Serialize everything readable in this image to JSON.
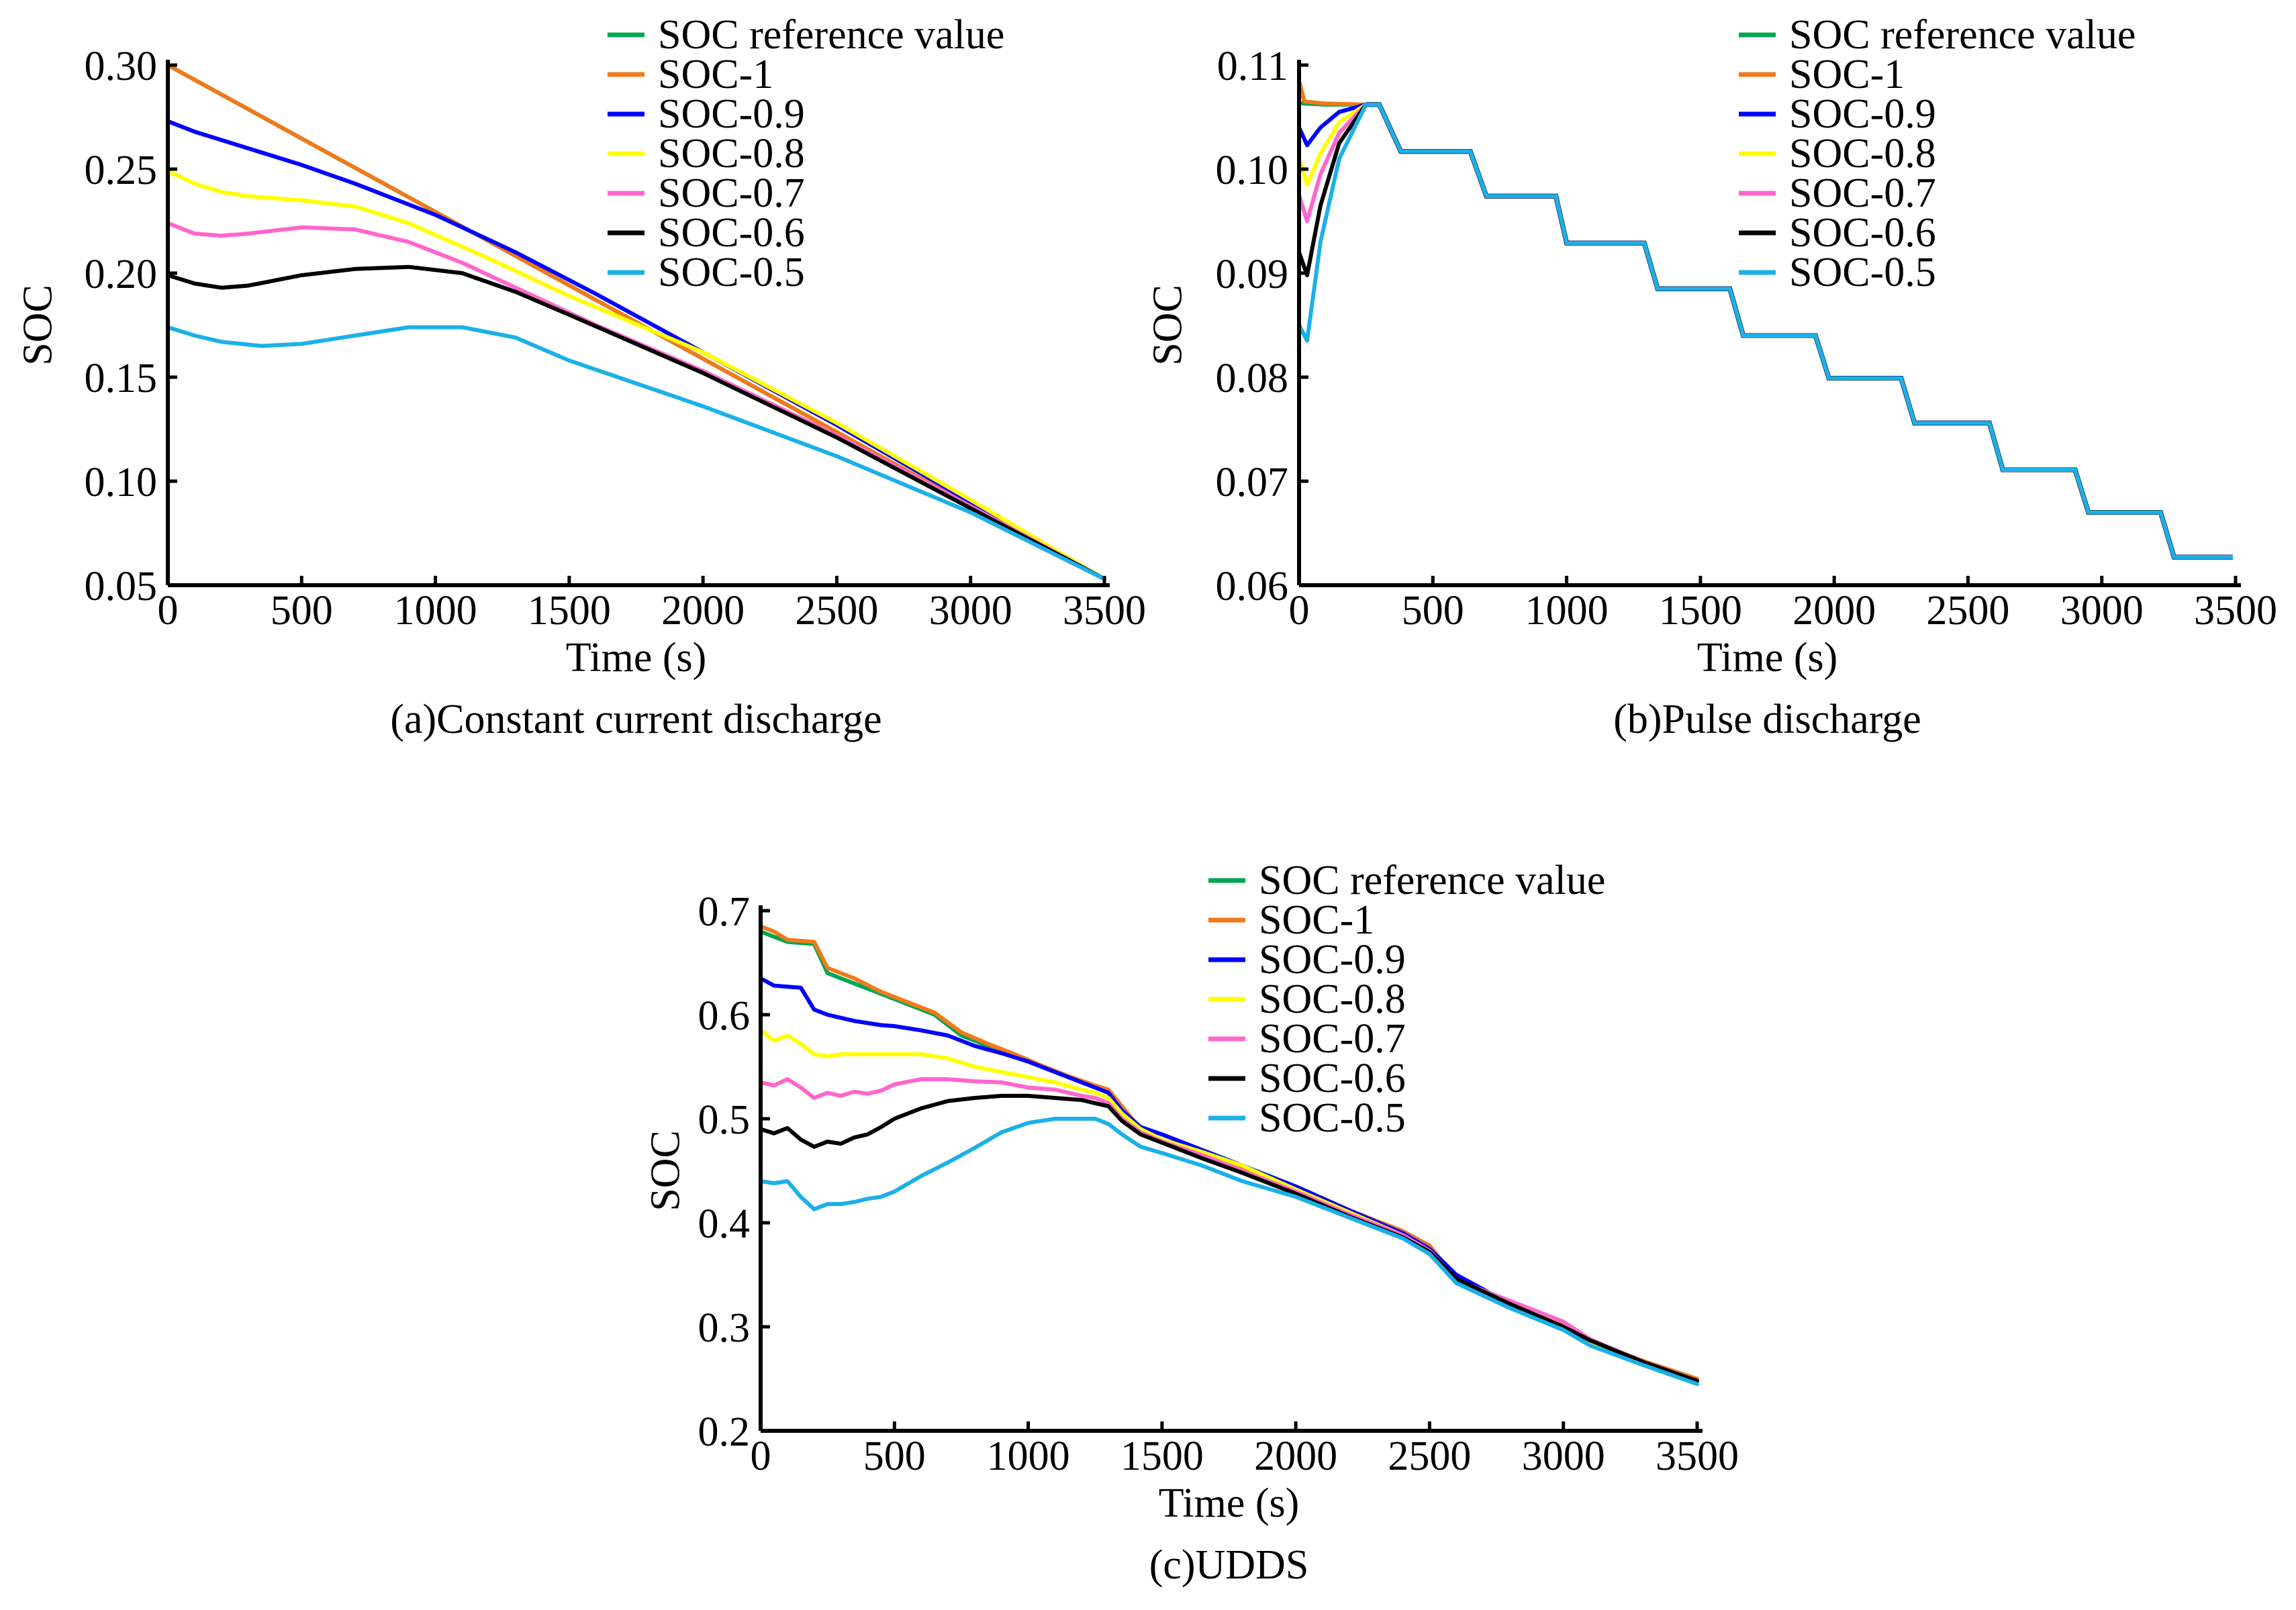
{
  "chart_data": [
    {
      "id": "a",
      "type": "line",
      "caption": "(a)Constant current discharge",
      "xlabel": "Time (s)",
      "ylabel": "SOC",
      "xlim": [
        0,
        3500
      ],
      "ylim": [
        0.05,
        0.3
      ],
      "xticks": [
        0,
        500,
        1000,
        1500,
        2000,
        2500,
        3000,
        3500
      ],
      "yticks": [
        0.05,
        0.1,
        0.15,
        0.2,
        0.25,
        0.3
      ],
      "ytick_decimals": 2,
      "grid": false,
      "legend_position": "top-right",
      "series": [
        {
          "name": "SOC reference value",
          "color": "#00a651",
          "x": [
            0,
            3500
          ],
          "y": [
            0.3,
            0.053
          ]
        },
        {
          "name": "SOC-1",
          "color": "#f07a1a",
          "x": [
            0,
            3500
          ],
          "y": [
            0.3,
            0.053
          ]
        },
        {
          "name": "SOC-0.9",
          "color": "#0000ff",
          "x": [
            0,
            100,
            300,
            500,
            700,
            1000,
            1300,
            1600,
            2000,
            2500,
            3000,
            3500
          ],
          "y": [
            0.273,
            0.268,
            0.26,
            0.252,
            0.243,
            0.228,
            0.21,
            0.19,
            0.162,
            0.127,
            0.09,
            0.053
          ]
        },
        {
          "name": "SOC-0.8",
          "color": "#ffff00",
          "x": [
            0,
            100,
            200,
            300,
            500,
            700,
            900,
            1200,
            1500,
            2000,
            2500,
            3000,
            3500
          ],
          "y": [
            0.249,
            0.243,
            0.239,
            0.237,
            0.235,
            0.232,
            0.224,
            0.207,
            0.189,
            0.162,
            0.128,
            0.091,
            0.053
          ]
        },
        {
          "name": "SOC-0.7",
          "color": "#ff66cc",
          "x": [
            0,
            100,
            200,
            300,
            500,
            700,
            900,
            1100,
            1300,
            1600,
            2000,
            2500,
            3000,
            3500
          ],
          "y": [
            0.224,
            0.219,
            0.218,
            0.219,
            0.222,
            0.221,
            0.215,
            0.205,
            0.193,
            0.175,
            0.153,
            0.122,
            0.088,
            0.053
          ]
        },
        {
          "name": "SOC-0.6",
          "color": "#000000",
          "x": [
            0,
            100,
            200,
            300,
            500,
            700,
            900,
            1100,
            1300,
            1500,
            2000,
            2500,
            3000,
            3500
          ],
          "y": [
            0.199,
            0.195,
            0.193,
            0.194,
            0.199,
            0.202,
            0.203,
            0.2,
            0.191,
            0.18,
            0.152,
            0.121,
            0.087,
            0.053
          ]
        },
        {
          "name": "SOC-0.5",
          "color": "#1cb0e8",
          "x": [
            0,
            100,
            200,
            350,
            500,
            700,
            900,
            1100,
            1300,
            1500,
            2000,
            2500,
            3000,
            3500
          ],
          "y": [
            0.174,
            0.17,
            0.167,
            0.165,
            0.166,
            0.17,
            0.174,
            0.174,
            0.169,
            0.158,
            0.136,
            0.112,
            0.085,
            0.053
          ]
        }
      ]
    },
    {
      "id": "b",
      "type": "line",
      "caption": "(b)Pulse discharge",
      "xlabel": "Time (s)",
      "ylabel": "SOC",
      "xlim": [
        0,
        3500
      ],
      "ylim": [
        0.06,
        0.11
      ],
      "xticks": [
        0,
        500,
        1000,
        1500,
        2000,
        2500,
        3000,
        3500
      ],
      "yticks": [
        0.06,
        0.07,
        0.08,
        0.09,
        0.1,
        0.11
      ],
      "ytick_decimals": 2,
      "grid": false,
      "legend_position": "top-right",
      "steps": {
        "x": [
          300,
          380,
          640,
          700,
          960,
          1000,
          1290,
          1340,
          1610,
          1660,
          1930,
          1980,
          2250,
          2300,
          2580,
          2630,
          2900,
          2950,
          3220,
          3270,
          3490
        ],
        "y": [
          0.1062,
          0.1017,
          0.1017,
          0.0974,
          0.0974,
          0.0929,
          0.0929,
          0.0885,
          0.0885,
          0.084,
          0.084,
          0.0799,
          0.0799,
          0.0756,
          0.0756,
          0.0711,
          0.0711,
          0.067,
          0.067,
          0.0627,
          0.0627
        ]
      },
      "series": [
        {
          "name": "SOC reference value",
          "color": "#00a651",
          "x": [
            0,
            20,
            100,
            250
          ],
          "y": [
            0.1064,
            0.1063,
            0.1062,
            0.1062
          ]
        },
        {
          "name": "SOC-1",
          "color": "#f07a1a",
          "x": [
            0,
            20,
            100,
            250
          ],
          "y": [
            0.1085,
            0.1065,
            0.1063,
            0.1062
          ]
        },
        {
          "name": "SOC-0.9",
          "color": "#0000ff",
          "x": [
            0,
            30,
            80,
            150,
            250
          ],
          "y": [
            0.104,
            0.1023,
            0.104,
            0.1055,
            0.1062
          ]
        },
        {
          "name": "SOC-0.8",
          "color": "#ffff00",
          "x": [
            0,
            30,
            80,
            150,
            250
          ],
          "y": [
            0.101,
            0.0985,
            0.1015,
            0.1045,
            0.1062
          ]
        },
        {
          "name": "SOC-0.7",
          "color": "#ff66cc",
          "x": [
            0,
            30,
            80,
            150,
            250
          ],
          "y": [
            0.0975,
            0.095,
            0.0995,
            0.1035,
            0.1062
          ]
        },
        {
          "name": "SOC-0.6",
          "color": "#000000",
          "x": [
            0,
            30,
            80,
            150,
            250
          ],
          "y": [
            0.092,
            0.0898,
            0.0965,
            0.1025,
            0.1062
          ]
        },
        {
          "name": "SOC-0.5",
          "color": "#1cb0e8",
          "x": [
            0,
            30,
            80,
            150,
            250
          ],
          "y": [
            0.085,
            0.0835,
            0.093,
            0.101,
            0.1062
          ]
        }
      ]
    },
    {
      "id": "c",
      "type": "line",
      "caption": "(c)UDDS",
      "xlabel": "Time (s)",
      "ylabel": "SOC",
      "xlim": [
        0,
        3500
      ],
      "ylim": [
        0.2,
        0.7
      ],
      "xticks": [
        0,
        500,
        1000,
        1500,
        2000,
        2500,
        3000,
        3500
      ],
      "yticks": [
        0.2,
        0.3,
        0.4,
        0.5,
        0.6,
        0.7
      ],
      "ytick_decimals": 1,
      "grid": false,
      "legend_position": "top-right",
      "series": [
        {
          "name": "SOC reference value",
          "color": "#00a651",
          "x": [
            0,
            50,
            100,
            200,
            250,
            350,
            450,
            550,
            650,
            750,
            850,
            950,
            1050,
            1150,
            1250,
            1300,
            1350,
            1420,
            1500,
            1650,
            1800,
            2000,
            2200,
            2400,
            2500,
            2600,
            2800,
            3000,
            3100,
            3300,
            3500
          ],
          "y": [
            0.68,
            0.675,
            0.67,
            0.668,
            0.64,
            0.63,
            0.62,
            0.61,
            0.6,
            0.58,
            0.57,
            0.56,
            0.55,
            0.54,
            0.53,
            0.525,
            0.51,
            0.49,
            0.48,
            0.465,
            0.45,
            0.43,
            0.41,
            0.39,
            0.375,
            0.345,
            0.32,
            0.3,
            0.285,
            0.265,
            0.248
          ]
        },
        {
          "name": "SOC-1",
          "color": "#f07a1a",
          "x": [
            0,
            50,
            100,
            200,
            250,
            350,
            450,
            550,
            650,
            750,
            850,
            950,
            1050,
            1150,
            1250,
            1300,
            1350,
            1420,
            1500,
            1650,
            1800,
            2000,
            2200,
            2400,
            2500,
            2600,
            2800,
            3000,
            3100,
            3300,
            3500
          ],
          "y": [
            0.685,
            0.68,
            0.672,
            0.67,
            0.645,
            0.635,
            0.622,
            0.612,
            0.602,
            0.583,
            0.572,
            0.562,
            0.551,
            0.541,
            0.532,
            0.528,
            0.512,
            0.49,
            0.48,
            0.466,
            0.452,
            0.432,
            0.412,
            0.392,
            0.378,
            0.346,
            0.322,
            0.301,
            0.287,
            0.267,
            0.25
          ]
        },
        {
          "name": "SOC-0.9",
          "color": "#0000ff",
          "x": [
            0,
            50,
            100,
            150,
            200,
            250,
            300,
            350,
            400,
            450,
            500,
            600,
            700,
            800,
            900,
            1000,
            1100,
            1200,
            1250,
            1300,
            1350,
            1420,
            1500,
            1650,
            1800,
            2000,
            2200,
            2400,
            2500,
            2600,
            2800,
            3000,
            3100,
            3300,
            3500
          ],
          "y": [
            0.635,
            0.628,
            0.627,
            0.626,
            0.605,
            0.6,
            0.597,
            0.594,
            0.592,
            0.59,
            0.589,
            0.585,
            0.58,
            0.57,
            0.563,
            0.555,
            0.545,
            0.535,
            0.53,
            0.525,
            0.508,
            0.492,
            0.485,
            0.47,
            0.455,
            0.435,
            0.412,
            0.39,
            0.375,
            0.35,
            0.322,
            0.3,
            0.285,
            0.265,
            0.248
          ]
        },
        {
          "name": "SOC-0.8",
          "color": "#ffff00",
          "x": [
            0,
            50,
            100,
            150,
            200,
            250,
            300,
            400,
            500,
            600,
            700,
            800,
            900,
            1000,
            1100,
            1200,
            1250,
            1300,
            1350,
            1420,
            1500,
            1650,
            1800,
            2000,
            2200,
            2400,
            2500,
            2600,
            2800,
            3000,
            3100,
            3300,
            3500
          ],
          "y": [
            0.585,
            0.575,
            0.58,
            0.572,
            0.562,
            0.56,
            0.562,
            0.562,
            0.562,
            0.562,
            0.558,
            0.55,
            0.545,
            0.54,
            0.535,
            0.528,
            0.525,
            0.52,
            0.505,
            0.49,
            0.48,
            0.468,
            0.455,
            0.432,
            0.41,
            0.388,
            0.373,
            0.345,
            0.322,
            0.3,
            0.286,
            0.266,
            0.248
          ]
        },
        {
          "name": "SOC-0.7",
          "color": "#ff66cc",
          "x": [
            0,
            50,
            100,
            150,
            200,
            250,
            300,
            350,
            400,
            450,
            500,
            600,
            700,
            800,
            900,
            1000,
            1100,
            1200,
            1250,
            1300,
            1350,
            1420,
            1500,
            1650,
            1800,
            2000,
            2200,
            2400,
            2500,
            2600,
            2800,
            3000,
            3100,
            3300,
            3500
          ],
          "y": [
            0.535,
            0.532,
            0.538,
            0.53,
            0.52,
            0.525,
            0.522,
            0.526,
            0.524,
            0.527,
            0.533,
            0.538,
            0.538,
            0.536,
            0.535,
            0.53,
            0.528,
            0.522,
            0.52,
            0.515,
            0.5,
            0.487,
            0.478,
            0.465,
            0.45,
            0.43,
            0.408,
            0.388,
            0.373,
            0.345,
            0.325,
            0.305,
            0.288,
            0.266,
            0.248
          ]
        },
        {
          "name": "SOC-0.6",
          "color": "#000000",
          "x": [
            0,
            50,
            100,
            150,
            200,
            250,
            300,
            350,
            400,
            450,
            500,
            600,
            700,
            800,
            900,
            1000,
            1100,
            1200,
            1250,
            1300,
            1350,
            1420,
            1500,
            1650,
            1800,
            2000,
            2200,
            2400,
            2500,
            2600,
            2800,
            3000,
            3100,
            3300,
            3500
          ],
          "y": [
            0.49,
            0.486,
            0.491,
            0.48,
            0.473,
            0.478,
            0.476,
            0.482,
            0.485,
            0.492,
            0.5,
            0.51,
            0.517,
            0.52,
            0.522,
            0.522,
            0.52,
            0.518,
            0.515,
            0.512,
            0.498,
            0.485,
            0.477,
            0.462,
            0.448,
            0.428,
            0.406,
            0.386,
            0.372,
            0.346,
            0.322,
            0.3,
            0.287,
            0.266,
            0.248
          ]
        },
        {
          "name": "SOC-0.5",
          "color": "#1cb0e8",
          "x": [
            0,
            50,
            100,
            150,
            200,
            250,
            300,
            350,
            400,
            450,
            500,
            600,
            700,
            800,
            900,
            1000,
            1100,
            1200,
            1250,
            1300,
            1350,
            1420,
            1500,
            1650,
            1800,
            2000,
            2200,
            2400,
            2500,
            2600,
            2800,
            3000,
            3100,
            3300,
            3500
          ],
          "y": [
            0.44,
            0.438,
            0.44,
            0.425,
            0.413,
            0.418,
            0.418,
            0.42,
            0.423,
            0.425,
            0.43,
            0.445,
            0.458,
            0.472,
            0.487,
            0.496,
            0.5,
            0.5,
            0.5,
            0.495,
            0.485,
            0.473,
            0.467,
            0.455,
            0.44,
            0.425,
            0.405,
            0.385,
            0.37,
            0.342,
            0.318,
            0.297,
            0.282,
            0.263,
            0.245
          ]
        }
      ]
    }
  ]
}
